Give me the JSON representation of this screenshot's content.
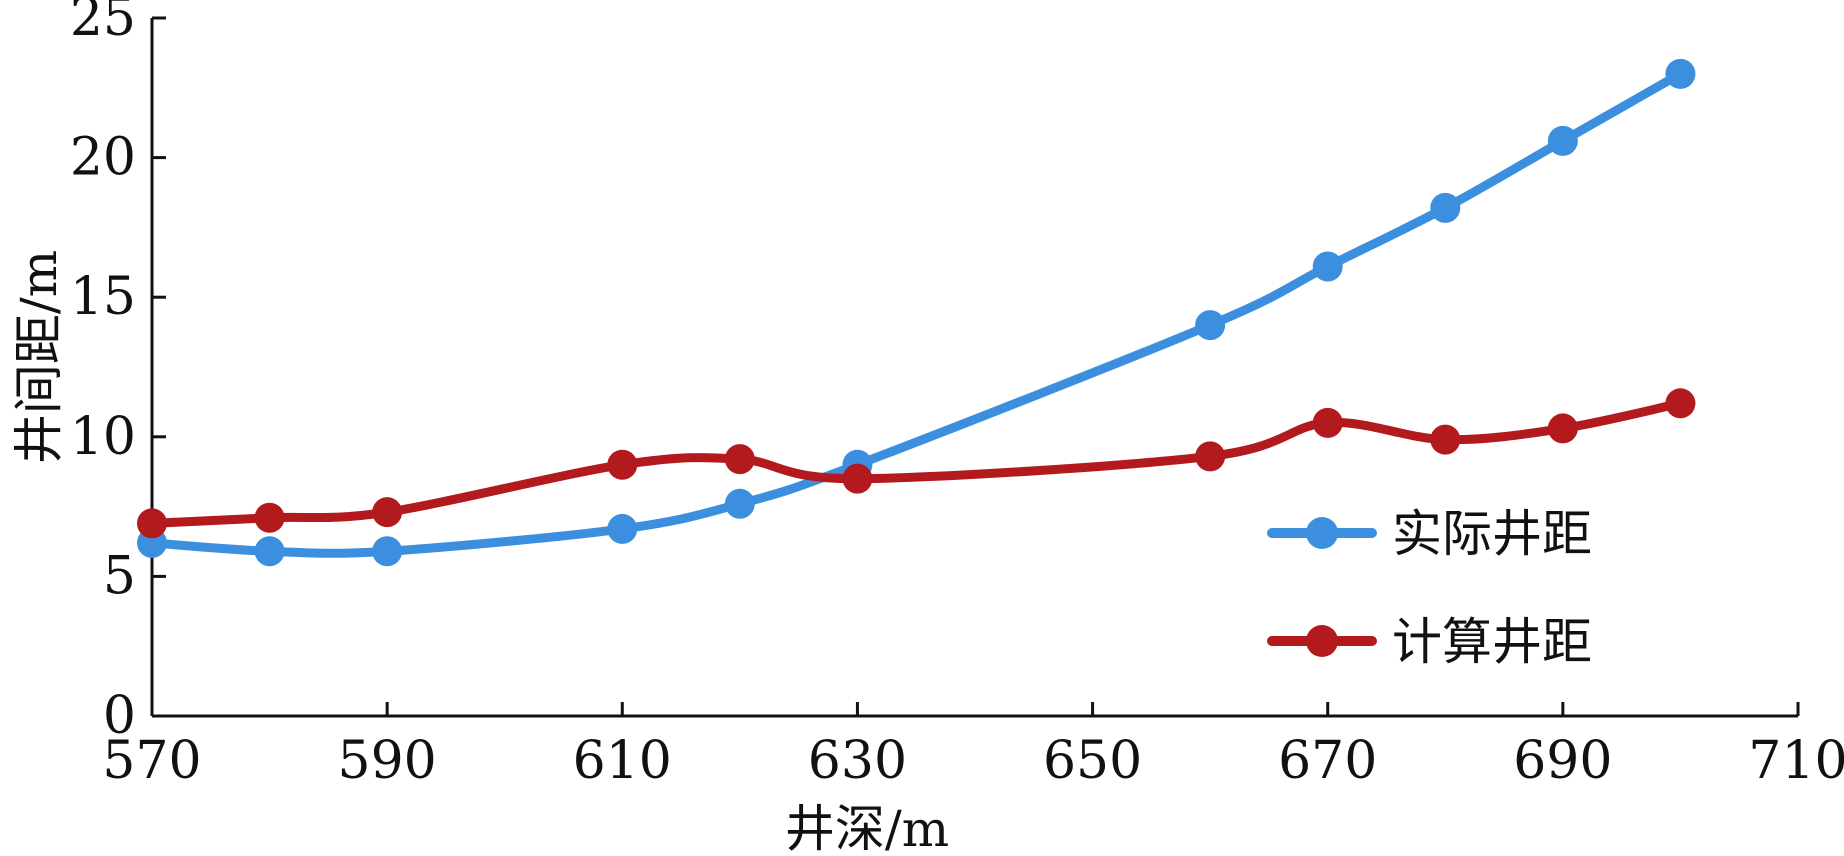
{
  "chart_data": {
    "type": "line",
    "title": "",
    "xlabel": "井深/m",
    "ylabel": "井间距/m",
    "xlim": [
      570,
      710
    ],
    "ylim": [
      0,
      25
    ],
    "xticks": [
      570,
      590,
      610,
      630,
      650,
      670,
      690,
      710
    ],
    "yticks": [
      0,
      5,
      10,
      15,
      20,
      25
    ],
    "grid": false,
    "legend_position": "lower-right",
    "series": [
      {
        "name": "实际井距",
        "color": "#3b8fde",
        "x": [
          570,
          580,
          590,
          610,
          620,
          630,
          660,
          670,
          680,
          690,
          700
        ],
        "y": [
          6.2,
          5.9,
          5.9,
          6.7,
          7.6,
          9.0,
          14.0,
          16.1,
          18.2,
          20.6,
          23.0
        ]
      },
      {
        "name": "计算井距",
        "color": "#b31a1e",
        "x": [
          570,
          580,
          590,
          610,
          620,
          630,
          660,
          670,
          680,
          690,
          700
        ],
        "y": [
          6.9,
          7.1,
          7.3,
          9.0,
          9.2,
          8.5,
          9.3,
          10.5,
          9.9,
          10.3,
          11.2
        ]
      }
    ]
  }
}
